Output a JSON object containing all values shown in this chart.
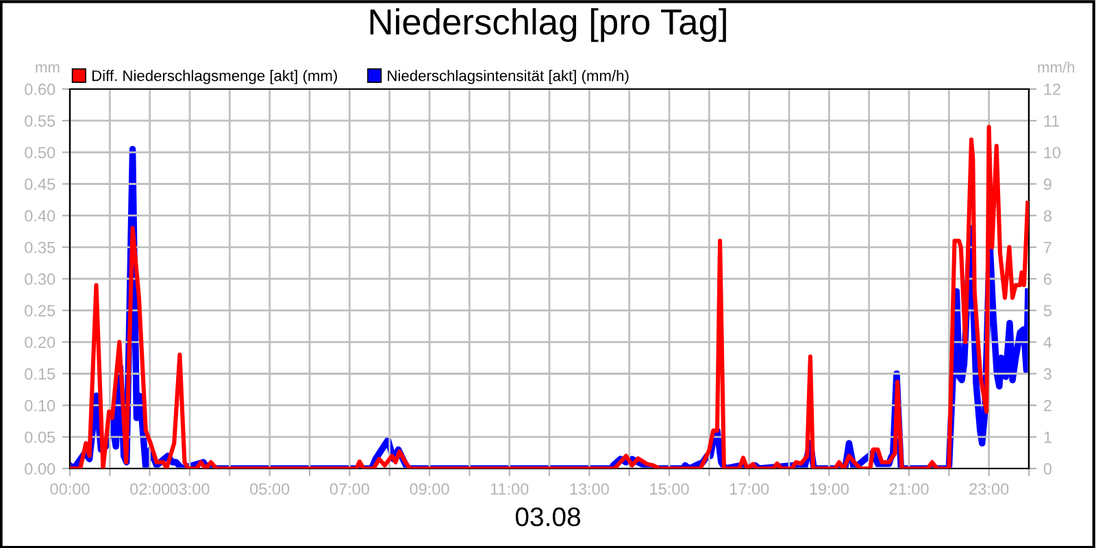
{
  "chart_data": {
    "type": "line",
    "title": "Niederschlag [pro Tag]",
    "xlabel": "03.08",
    "ylabel": "mm",
    "y2label": "mm/h",
    "series": [
      {
        "name": "Diff. Niederschlagsmenge [akt] (mm)",
        "color": "#ff0000",
        "x": [
          0,
          0.26,
          0.4,
          0.49,
          0.66,
          0.83,
          0.98,
          1.06,
          1.24,
          1.41,
          1.57,
          1.73,
          1.9,
          2.02,
          2.17,
          2.34,
          2.42,
          2.61,
          2.75,
          2.87,
          2.96,
          3.17,
          3.28,
          3.4,
          3.53,
          3.67,
          7.17,
          7.25,
          7.35,
          7.6,
          7.74,
          7.88,
          8.06,
          8.15,
          8.25,
          8.4,
          8.51,
          13.63,
          13.92,
          14.07,
          14.22,
          14.45,
          14.6,
          14.75,
          15.78,
          16.0,
          16.1,
          16.2,
          16.27,
          16.37,
          16.75,
          16.85,
          16.95,
          17.1,
          17.18,
          17.6,
          17.7,
          17.8,
          18.07,
          18.17,
          18.3,
          18.45,
          18.53,
          18.6,
          19.15,
          19.25,
          19.37,
          19.5,
          19.67,
          19.8,
          20.03,
          20.1,
          20.22,
          20.32,
          20.5,
          20.6,
          20.65,
          20.71,
          20.82,
          21.47,
          21.58,
          21.7,
          22.0,
          22.14,
          22.25,
          22.3,
          22.41,
          22.56,
          22.6,
          22.64,
          22.79,
          22.94,
          23.0,
          23.08,
          23.19,
          23.28,
          23.4,
          23.51,
          23.59,
          23.67,
          23.78,
          23.82,
          23.88,
          23.97
        ],
        "values": [
          0,
          0,
          0.04,
          0.02,
          0.29,
          0,
          0.09,
          0.08,
          0.2,
          0.01,
          0.38,
          0.27,
          0.06,
          0.04,
          0.01,
          0.01,
          0,
          0.04,
          0.18,
          0.01,
          0,
          0,
          0.01,
          0,
          0.01,
          0,
          0,
          0.011,
          0,
          0,
          0.015,
          0.005,
          0.02,
          0.01,
          0.027,
          0.01,
          0,
          0,
          0.02,
          0.005,
          0.016,
          0.007,
          0.005,
          0,
          0,
          0.029,
          0.06,
          0.06,
          0.36,
          0,
          0,
          0.017,
          0,
          0.007,
          0,
          0,
          0.008,
          0,
          0,
          0.01,
          0.008,
          0.02,
          0.177,
          0,
          0,
          0.01,
          0,
          0.02,
          0.007,
          0,
          0,
          0.03,
          0.03,
          0.01,
          0.01,
          0.02,
          0.024,
          0.137,
          0,
          0,
          0.01,
          0,
          0,
          0.36,
          0.36,
          0.35,
          0.2,
          0.52,
          0.49,
          0.28,
          0.145,
          0.09,
          0.54,
          0.35,
          0.51,
          0.34,
          0.27,
          0.35,
          0.27,
          0.29,
          0.29,
          0.31,
          0.29,
          0.42
        ]
      },
      {
        "name": "Niederschlagsintensität [akt] (mm/h)",
        "color": "#0000ff",
        "axis": "y2",
        "x": [
          0,
          0.1,
          0.38,
          0.49,
          0.66,
          0.78,
          0.9,
          1.06,
          1.15,
          1.26,
          1.35,
          1.42,
          1.57,
          1.67,
          1.74,
          1.8,
          1.9,
          2.02,
          2.17,
          2.45,
          2.57,
          2.66,
          2.8,
          3.34,
          3.45,
          7.55,
          7.65,
          7.96,
          8.1,
          8.22,
          8.45,
          13.55,
          13.6,
          13.78,
          13.92,
          14.07,
          14.22,
          14.38,
          14.5,
          14.6,
          15.35,
          15.4,
          15.5,
          15.84,
          15.95,
          16.03,
          16.13,
          16.2,
          16.3,
          16.4,
          16.8,
          16.9,
          17.15,
          17.25,
          18.1,
          18.2,
          18.38,
          18.53,
          18.62,
          19.4,
          19.5,
          19.62,
          20.1,
          20.22,
          20.5,
          20.55,
          20.6,
          20.69,
          20.8,
          22.0,
          22.19,
          22.26,
          22.32,
          22.38,
          22.54,
          22.68,
          22.78,
          22.83,
          22.9,
          23.02,
          23.11,
          23.2,
          23.26,
          23.31,
          23.37,
          23.42,
          23.52,
          23.59,
          23.67,
          23.78,
          23.87,
          23.94,
          23.98
        ],
        "values": [
          0.1,
          0,
          0.5,
          0.3,
          2.3,
          0.6,
          0.7,
          1.5,
          0.7,
          3.2,
          0.4,
          0.2,
          10.1,
          1.6,
          2.3,
          1.6,
          0,
          0.6,
          0.1,
          0.4,
          0.2,
          0.2,
          0,
          0.2,
          0,
          0,
          0.3,
          0.9,
          0.3,
          0.6,
          0,
          0,
          0.1,
          0.3,
          0.2,
          0.3,
          0.2,
          0.1,
          0,
          0,
          0,
          0.1,
          0,
          0.2,
          0.4,
          0.4,
          1.1,
          1.2,
          0.2,
          0,
          0.1,
          0,
          0.1,
          0,
          0.1,
          0,
          0,
          0.8,
          0,
          0,
          0.8,
          0,
          0.5,
          0.15,
          0.15,
          0.35,
          0.45,
          3.0,
          0,
          0,
          5.6,
          2.9,
          2.8,
          3.3,
          7.6,
          2.7,
          1.2,
          0.8,
          1.8,
          7.2,
          4.8,
          3.0,
          2.6,
          3.5,
          3.4,
          2.9,
          4.6,
          2.8,
          3.5,
          4.3,
          4.4,
          3.1,
          5.6
        ]
      }
    ],
    "xlim": [
      0,
      24
    ],
    "xticks": [
      {
        "value": 0,
        "label": "00:00"
      },
      {
        "value": 1,
        "label": null
      },
      {
        "value": 2,
        "label": "02:00"
      },
      {
        "value": 3,
        "label": "03:00"
      },
      {
        "value": 4,
        "label": null
      },
      {
        "value": 5,
        "label": "05:00"
      },
      {
        "value": 6,
        "label": null
      },
      {
        "value": 7,
        "label": "07:00"
      },
      {
        "value": 8,
        "label": null
      },
      {
        "value": 9,
        "label": "09:00"
      },
      {
        "value": 10,
        "label": null
      },
      {
        "value": 11,
        "label": "11:00"
      },
      {
        "value": 12,
        "label": null
      },
      {
        "value": 13,
        "label": "13:00"
      },
      {
        "value": 14,
        "label": null
      },
      {
        "value": 15,
        "label": "15:00"
      },
      {
        "value": 16,
        "label": null
      },
      {
        "value": 17,
        "label": "17:00"
      },
      {
        "value": 18,
        "label": null
      },
      {
        "value": 19,
        "label": "19:00"
      },
      {
        "value": 20,
        "label": null
      },
      {
        "value": 21,
        "label": "21:00"
      },
      {
        "value": 22,
        "label": null
      },
      {
        "value": 23,
        "label": "23:00"
      },
      {
        "value": 24,
        "label": null
      }
    ],
    "ylim": [
      0,
      0.6
    ],
    "yticks": [
      {
        "value": 0,
        "label": "0.00"
      },
      {
        "value": 0.05,
        "label": "0.05"
      },
      {
        "value": 0.1,
        "label": "0.10"
      },
      {
        "value": 0.15,
        "label": "0.15"
      },
      {
        "value": 0.2,
        "label": "0.20"
      },
      {
        "value": 0.25,
        "label": "0.25"
      },
      {
        "value": 0.3,
        "label": "0.30"
      },
      {
        "value": 0.35,
        "label": "0.35"
      },
      {
        "value": 0.4,
        "label": "0.40"
      },
      {
        "value": 0.45,
        "label": "0.45"
      },
      {
        "value": 0.5,
        "label": "0.50"
      },
      {
        "value": 0.55,
        "label": "0.55"
      },
      {
        "value": 0.6,
        "label": "0.60"
      }
    ],
    "y2lim": [
      0,
      12
    ],
    "y2ticks": [
      0,
      1,
      2,
      3,
      4,
      5,
      6,
      7,
      8,
      9,
      10,
      11,
      12
    ],
    "grid": true,
    "legend": "top left",
    "marker": "none",
    "line_style": "solid"
  }
}
